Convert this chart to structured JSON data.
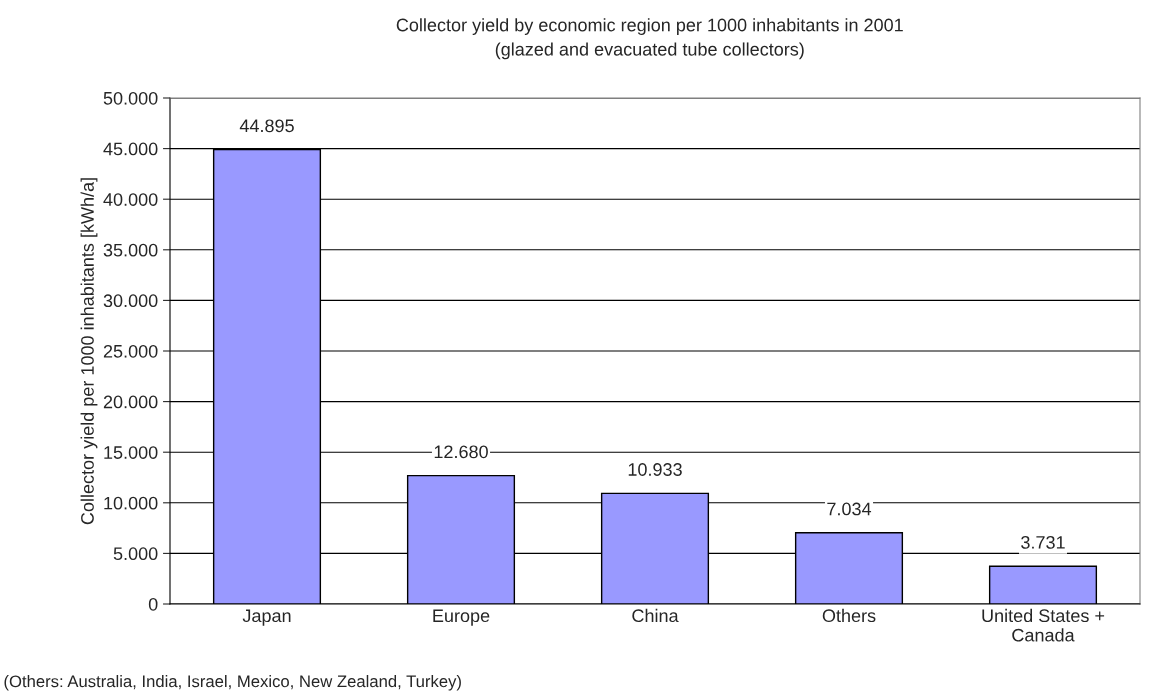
{
  "chart_data": {
    "type": "bar",
    "title": "Collector yield by economic region per 1000 inhabitants in 2001",
    "subtitle": "(glazed and evacuated tube collectors)",
    "ylabel": "Collector yield per 1000 inhabitants [kWh/a]",
    "categories": [
      "Japan",
      "Europe",
      "China",
      "Others",
      "United States +\nCanada"
    ],
    "values": [
      44895,
      12680,
      10933,
      7034,
      3731
    ],
    "value_labels": [
      "44.895",
      "12.680",
      "10.933",
      "7.034",
      "3.731"
    ],
    "color": "#9999ff",
    "ylim": [
      0,
      50000
    ],
    "yticks": [
      0,
      {
        "value": 5000,
        "label": "5.000"
      },
      {
        "value": 10000,
        "label": "10.000"
      },
      {
        "value": 15000,
        "label": "15.000"
      },
      {
        "value": 20000,
        "label": "20.000"
      },
      {
        "value": 25000,
        "label": "25.000"
      },
      {
        "value": 30000,
        "label": "30.000"
      },
      {
        "value": 35000,
        "label": "35.000"
      },
      {
        "value": 40000,
        "label": "40.000"
      },
      {
        "value": 45000,
        "label": "45.000"
      },
      {
        "value": 50000,
        "label": "50.000"
      }
    ],
    "grid": "y",
    "annotations": [
      "(Others: Australia, India, Israel, Mexico, New Zealand, Turkey)"
    ]
  }
}
